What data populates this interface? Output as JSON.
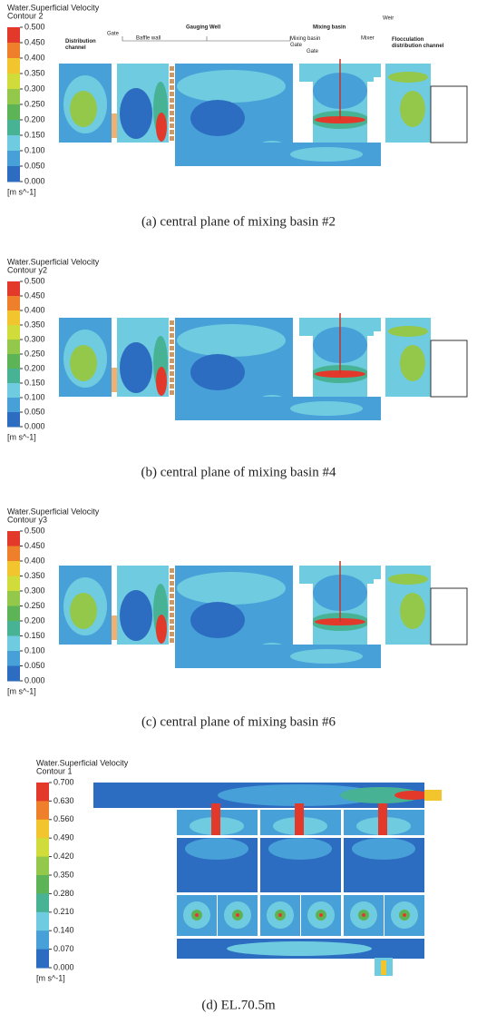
{
  "panels": [
    {
      "colorbar": {
        "title": "Water.Superficial Velocity",
        "subtitle": "Contour 2",
        "ticks": [
          "0.500",
          "0.450",
          "0.400",
          "0.350",
          "0.300",
          "0.250",
          "0.200",
          "0.150",
          "0.100",
          "0.050",
          "0.000"
        ],
        "unit": "[m s^-1]"
      },
      "annotations": [
        "Distribution channel",
        "Gate",
        "Gauging Well",
        "Baffle wall",
        "Mixing basin",
        "Mixing basin Gate",
        "Mixer",
        "Weir",
        "Flocculation distribution channel"
      ],
      "caption": "(a)  central  plane  of  mixing  basin  #2"
    },
    {
      "colorbar": {
        "title": "Water.Superficial Velocity",
        "subtitle": "Contour y2",
        "ticks": [
          "0.500",
          "0.450",
          "0.400",
          "0.350",
          "0.300",
          "0.250",
          "0.200",
          "0.150",
          "0.100",
          "0.050",
          "0.000"
        ],
        "unit": "[m s^-1]"
      },
      "caption": "(b)  central  plane  of  mixing  basin  #4"
    },
    {
      "colorbar": {
        "title": "Water.Superficial Velocity",
        "subtitle": "Contour y3",
        "ticks": [
          "0.500",
          "0.450",
          "0.400",
          "0.350",
          "0.300",
          "0.250",
          "0.200",
          "0.150",
          "0.100",
          "0.050",
          "0.000"
        ],
        "unit": "[m s^-1]"
      },
      "caption": "(c)  central  plane  of  mixing  basin  #6"
    },
    {
      "colorbar": {
        "title": "Water.Superficial Velocity",
        "subtitle": "Contour 1",
        "ticks": [
          "0.700",
          "0.630",
          "0.560",
          "0.490",
          "0.420",
          "0.350",
          "0.280",
          "0.210",
          "0.140",
          "0.070",
          "0.000"
        ],
        "unit": "[m s^-1]"
      },
      "caption": "(d)  EL.70.5m"
    }
  ]
}
